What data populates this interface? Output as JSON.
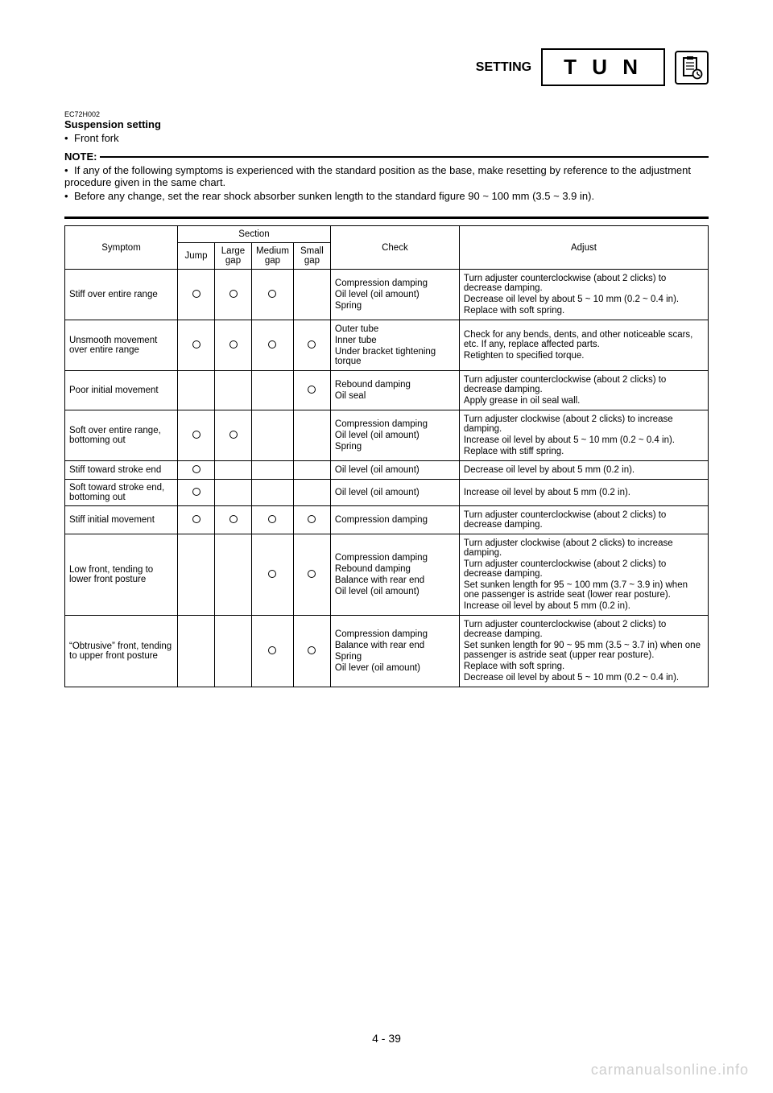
{
  "header": {
    "setting": "SETTING",
    "tun": "T U N"
  },
  "code": "EC72H002",
  "heading": "Suspension setting",
  "frontFork": "Front fork",
  "noteLabel": "NOTE:",
  "note1": "If any of the following symptoms is experienced with the standard position as the base, make resetting by reference to the adjustment procedure given in the same chart.",
  "note2": "Before any change, set the rear shock absorber sunken length to the standard figure 90 ~ 100 mm (3.5 ~ 3.9 in).",
  "tableHeaders": {
    "symptom": "Symptom",
    "section": "Section",
    "jump": "Jump",
    "large": "Large gap",
    "medium": "Medium gap",
    "small": "Small gap",
    "check": "Check",
    "adjust": "Adjust"
  },
  "rows": [
    {
      "symptom": "Stiff over entire range",
      "marks": [
        true,
        true,
        true,
        false
      ],
      "checks": [
        "Compression damping",
        "Oil level (oil amount)",
        "Spring"
      ],
      "adjusts": [
        "Turn adjuster counterclockwise (about 2 clicks) to decrease damping.",
        "Decrease oil level by about 5 ~ 10 mm (0.2 ~ 0.4 in).",
        "Replace with soft spring."
      ]
    },
    {
      "symptom": "Unsmooth movement over entire range",
      "marks": [
        true,
        true,
        true,
        true
      ],
      "checks": [
        "Outer tube",
        "Inner tube",
        "Under bracket tightening torque"
      ],
      "adjusts": [
        "Check for any bends, dents, and other noticeable scars, etc. If any, replace affected parts.",
        "Retighten to specified torque."
      ]
    },
    {
      "symptom": "Poor initial movement",
      "marks": [
        false,
        false,
        false,
        true
      ],
      "checks": [
        "Rebound damping",
        "Oil seal"
      ],
      "adjusts": [
        "Turn adjuster counterclockwise (about 2 clicks) to decrease damping.",
        "Apply grease in oil seal wall."
      ]
    },
    {
      "symptom": "Soft over entire range, bottoming out",
      "marks": [
        true,
        true,
        false,
        false
      ],
      "checks": [
        "Compression damping",
        "Oil level (oil amount)",
        "Spring"
      ],
      "adjusts": [
        "Turn adjuster clockwise (about 2 clicks) to increase damping.",
        "Increase oil level by about 5 ~ 10 mm (0.2 ~ 0.4 in).",
        "Replace with stiff spring."
      ]
    },
    {
      "symptom": "Stiff toward stroke end",
      "marks": [
        true,
        false,
        false,
        false
      ],
      "checks": [
        "Oil level (oil amount)"
      ],
      "adjusts": [
        "Decrease oil level by about 5 mm (0.2 in)."
      ]
    },
    {
      "symptom": "Soft toward stroke end, bottoming out",
      "marks": [
        true,
        false,
        false,
        false
      ],
      "checks": [
        "Oil level (oil amount)"
      ],
      "adjusts": [
        "Increase oil level by about 5 mm (0.2 in)."
      ]
    },
    {
      "symptom": "Stiff initial movement",
      "marks": [
        true,
        true,
        true,
        true
      ],
      "checks": [
        "Compression damping"
      ],
      "adjusts": [
        "Turn adjuster counterclockwise (about 2 clicks) to decrease damping."
      ]
    },
    {
      "symptom": "Low front, tending to lower front posture",
      "marks": [
        false,
        false,
        true,
        true
      ],
      "checks": [
        "Compression damping",
        "Rebound damping",
        "Balance with rear end",
        "Oil level (oil amount)"
      ],
      "adjusts": [
        "Turn adjuster clockwise (about 2 clicks) to increase damping.",
        "Turn adjuster counterclockwise (about 2 clicks) to decrease damping.",
        "Set sunken length for 95 ~ 100 mm (3.7 ~ 3.9 in) when one passenger is astride seat (lower rear posture).",
        "Increase oil level by about 5 mm (0.2 in)."
      ]
    },
    {
      "symptom": "“Obtrusive” front, tending to upper front posture",
      "marks": [
        false,
        false,
        true,
        true
      ],
      "checks": [
        "Compression damping",
        "Balance with rear end",
        "Spring",
        "Oil lever (oil amount)"
      ],
      "adjusts": [
        "Turn adjuster counterclockwise (about 2 clicks) to decrease damping.",
        "Set sunken length for 90 ~ 95 mm (3.5 ~ 3.7 in) when one passenger is astride seat (upper rear posture).",
        "Replace with soft spring.",
        "Decrease oil level by about 5 ~ 10 mm (0.2 ~ 0.4 in)."
      ]
    }
  ],
  "pageNum": "4 - 39",
  "watermark": "carmanualsonline.info"
}
